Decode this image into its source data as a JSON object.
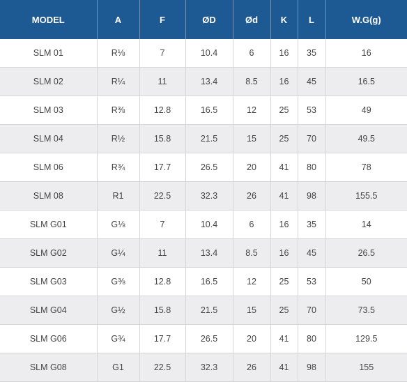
{
  "table": {
    "headers": [
      "MODEL",
      "A",
      "F",
      "ØD",
      "Ød",
      "K",
      "L",
      "W.G(g)"
    ],
    "rows": [
      [
        "SLM 01",
        "R⅛",
        "7",
        "10.4",
        "6",
        "16",
        "35",
        "16"
      ],
      [
        "SLM 02",
        "R¼",
        "11",
        "13.4",
        "8.5",
        "16",
        "45",
        "16.5"
      ],
      [
        "SLM 03",
        "R⅜",
        "12.8",
        "16.5",
        "12",
        "25",
        "53",
        "49"
      ],
      [
        "SLM 04",
        "R½",
        "15.8",
        "21.5",
        "15",
        "25",
        "70",
        "49.5"
      ],
      [
        "SLM 06",
        "R¾",
        "17.7",
        "26.5",
        "20",
        "41",
        "80",
        "78"
      ],
      [
        "SLM 08",
        "R1",
        "22.5",
        "32.3",
        "26",
        "41",
        "98",
        "155.5"
      ],
      [
        "SLM G01",
        "G⅛",
        "7",
        "10.4",
        "6",
        "16",
        "35",
        "14"
      ],
      [
        "SLM G02",
        "G¼",
        "11",
        "13.4",
        "8.5",
        "16",
        "45",
        "26.5"
      ],
      [
        "SLM G03",
        "G⅜",
        "12.8",
        "16.5",
        "12",
        "25",
        "53",
        "50"
      ],
      [
        "SLM G04",
        "G½",
        "15.8",
        "21.5",
        "15",
        "25",
        "70",
        "73.5"
      ],
      [
        "SLM G06",
        "G¾",
        "17.7",
        "26.5",
        "20",
        "41",
        "80",
        "129.5"
      ],
      [
        "SLM G08",
        "G1",
        "22.5",
        "32.3",
        "26",
        "41",
        "98",
        "155"
      ]
    ]
  },
  "colors": {
    "header_bg": "#1d5a93",
    "row_alt_bg": "#ededef"
  }
}
